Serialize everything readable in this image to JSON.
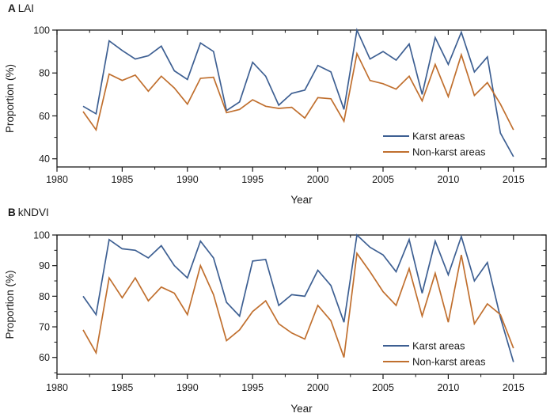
{
  "figure": {
    "background": "#ffffff",
    "panels": [
      {
        "label": "A",
        "title": "LAI"
      },
      {
        "label": "B",
        "title": "kNDVI"
      }
    ]
  },
  "colors": {
    "karst": "#3D5F92",
    "non_karst": "#C06F2E",
    "axis": "#1a1a1a"
  },
  "chart_data": [
    {
      "type": "line",
      "panel_label": "A",
      "title": "LAI",
      "xlabel": "Year",
      "ylabel": "Proportion (%)",
      "x": [
        1982,
        1983,
        1984,
        1985,
        1986,
        1987,
        1988,
        1989,
        1990,
        1991,
        1992,
        1993,
        1994,
        1995,
        1996,
        1997,
        1998,
        1999,
        2000,
        2001,
        2002,
        2003,
        2004,
        2005,
        2006,
        2007,
        2008,
        2009,
        2010,
        2011,
        2012,
        2013,
        2014,
        2015
      ],
      "series": [
        {
          "name": "Karst areas",
          "color": "#3D5F92",
          "values": [
            64.5,
            61,
            95,
            90.5,
            86.5,
            88,
            92.5,
            81,
            77,
            94,
            90,
            62.5,
            66.5,
            85,
            78.5,
            65,
            70.5,
            72,
            83.5,
            80.5,
            63,
            100,
            86.5,
            90,
            86,
            93.5,
            70,
            96.5,
            84,
            99,
            80.5,
            87.5,
            52,
            41
          ]
        },
        {
          "name": "Non-karst areas",
          "color": "#C06F2E",
          "values": [
            62,
            53.5,
            79.5,
            76.5,
            79,
            71.5,
            78.5,
            73,
            65.5,
            77.5,
            78,
            61.5,
            63,
            67.5,
            64.5,
            63.5,
            64,
            59,
            68.5,
            68,
            57.5,
            89,
            76.5,
            75,
            72.5,
            78.5,
            67,
            84,
            69,
            88.5,
            69.5,
            75.5,
            65.5,
            53.5
          ]
        }
      ],
      "xlim": [
        1980,
        2017.5
      ],
      "ylim": [
        36.2,
        100
      ],
      "xticks": [
        1980,
        1985,
        1990,
        1995,
        2000,
        2005,
        2010,
        2015
      ],
      "yticks": [
        40,
        60,
        80,
        100
      ],
      "x_minor_step": 2.5,
      "y_minor_step": 10,
      "grid": false,
      "legend_position": "inside-lower-right"
    },
    {
      "type": "line",
      "panel_label": "B",
      "title": "kNDVI",
      "xlabel": "Year",
      "ylabel": "Proportion (%)",
      "x": [
        1982,
        1983,
        1984,
        1985,
        1986,
        1987,
        1988,
        1989,
        1990,
        1991,
        1992,
        1993,
        1994,
        1995,
        1996,
        1997,
        1998,
        1999,
        2000,
        2001,
        2002,
        2003,
        2004,
        2005,
        2006,
        2007,
        2008,
        2009,
        2010,
        2011,
        2012,
        2013,
        2014,
        2015
      ],
      "series": [
        {
          "name": "Karst areas",
          "color": "#3D5F92",
          "values": [
            80,
            74,
            98.5,
            95.5,
            95,
            92.5,
            96.5,
            90,
            86,
            98,
            92.5,
            78,
            73.5,
            91.5,
            92,
            77,
            80.5,
            80,
            88.5,
            83.5,
            71.5,
            100,
            96,
            93.5,
            88,
            98.5,
            81,
            98,
            87,
            99.5,
            85,
            91,
            73,
            58.5
          ]
        },
        {
          "name": "Non-karst areas",
          "color": "#C06F2E",
          "values": [
            69,
            61.5,
            86,
            79.5,
            86,
            78.5,
            83,
            81,
            74,
            90,
            80.5,
            65.5,
            69,
            75,
            78.5,
            71,
            68,
            66,
            77,
            72,
            60,
            94,
            88,
            81.5,
            77,
            89,
            73.5,
            87.5,
            71.5,
            93.5,
            71,
            77.5,
            74,
            63
          ]
        }
      ],
      "xlim": [
        1980,
        2017.5
      ],
      "ylim": [
        54.5,
        100
      ],
      "xticks": [
        1980,
        1985,
        1990,
        1995,
        2000,
        2005,
        2010,
        2015
      ],
      "yticks": [
        60,
        70,
        80,
        90,
        100
      ],
      "x_minor_step": 2.5,
      "y_minor_step": 5,
      "grid": false,
      "legend_position": "inside-lower-right"
    }
  ]
}
